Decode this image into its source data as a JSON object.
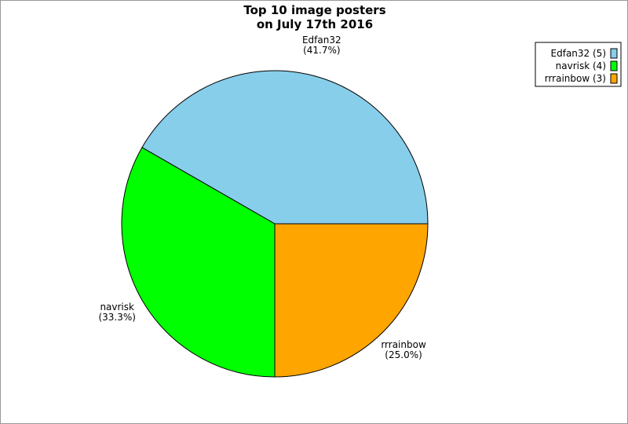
{
  "chart_data": {
    "type": "pie",
    "title": "Top 10 image posters\non July 17th 2016",
    "categories": [
      "Edfan32",
      "navrisk",
      "rrrainbow"
    ],
    "values": [
      41.7,
      33.3,
      25.0
    ],
    "value_labels": [
      "(41.7%)",
      "(33.3%)",
      "(25.0%)"
    ],
    "legend_labels": [
      "Edfan32 (5)",
      "navrisk (4)",
      "rrrainbow (3)"
    ],
    "colors": [
      "#87ceeb",
      "#00ff00",
      "#ffa500"
    ]
  }
}
